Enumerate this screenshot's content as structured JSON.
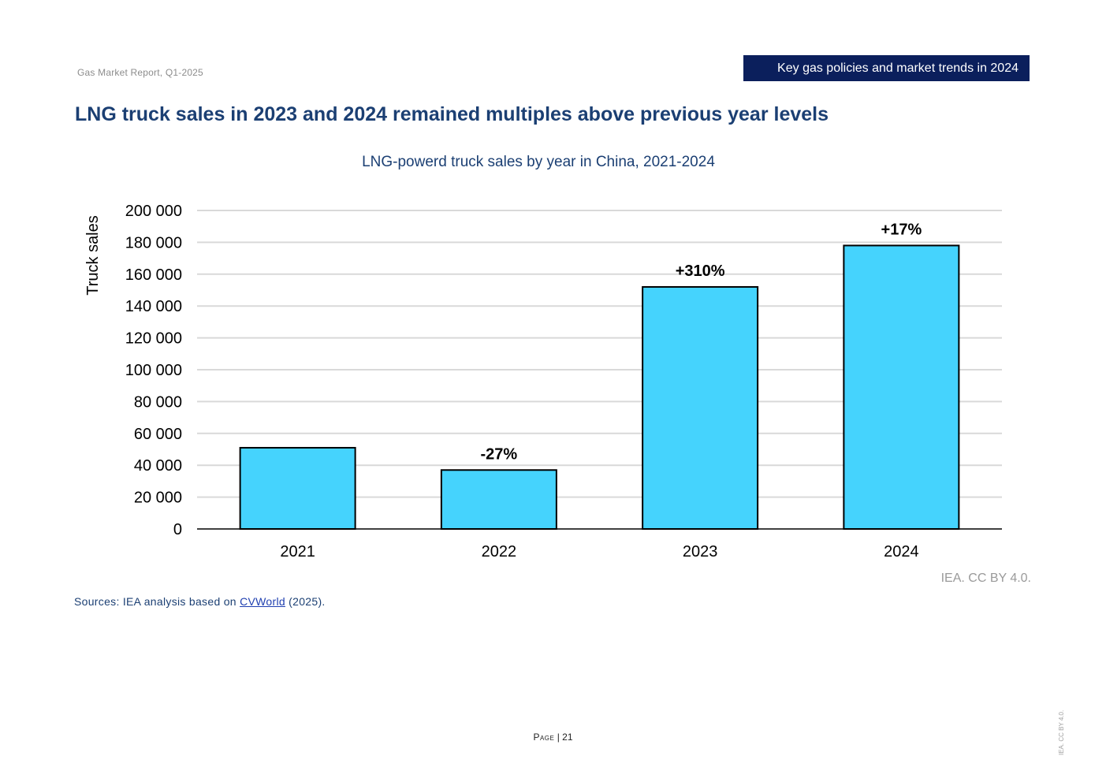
{
  "header": {
    "report_name": "Gas Market Report, Q1-2025",
    "section": "Key gas policies and market trends in 2024"
  },
  "page_title": "LNG truck sales in 2023 and 2024 remained multiples above previous year levels",
  "chart_title": "LNG-powerd truck sales by year in China, 2021-2024",
  "credit": "IEA. CC BY 4.0.",
  "sources": {
    "prefix": "Sources: IEA analysis based on ",
    "link": "CVWorld",
    "suffix": " (2025)."
  },
  "footer": {
    "page_label": "Page",
    "separator": " | ",
    "page_number": "21",
    "side_credit": "IEA. CC BY 4.0."
  },
  "colors": {
    "bar_fill": "#45d3fd",
    "bar_stroke": "#000000",
    "title_color": "#1b3f73",
    "banner_bg": "#0b1f5c",
    "gridline": "#d9d9d9"
  },
  "chart_data": {
    "type": "bar",
    "categories": [
      "2021",
      "2022",
      "2023",
      "2024"
    ],
    "values": [
      51000,
      37000,
      152000,
      178000
    ],
    "data_labels": [
      "",
      "-27%",
      "+310%",
      "+17%"
    ],
    "ylabel": "Truck sales",
    "xlabel": "",
    "ylim": [
      0,
      200000
    ],
    "yticks": [
      0,
      20000,
      40000,
      60000,
      80000,
      100000,
      120000,
      140000,
      160000,
      180000,
      200000
    ],
    "ytick_labels": [
      "0",
      "20 000",
      "40 000",
      "60 000",
      "80 000",
      "100 000",
      "120 000",
      "140 000",
      "160 000",
      "180 000",
      "200 000"
    ],
    "grid": true,
    "legend": "none"
  }
}
